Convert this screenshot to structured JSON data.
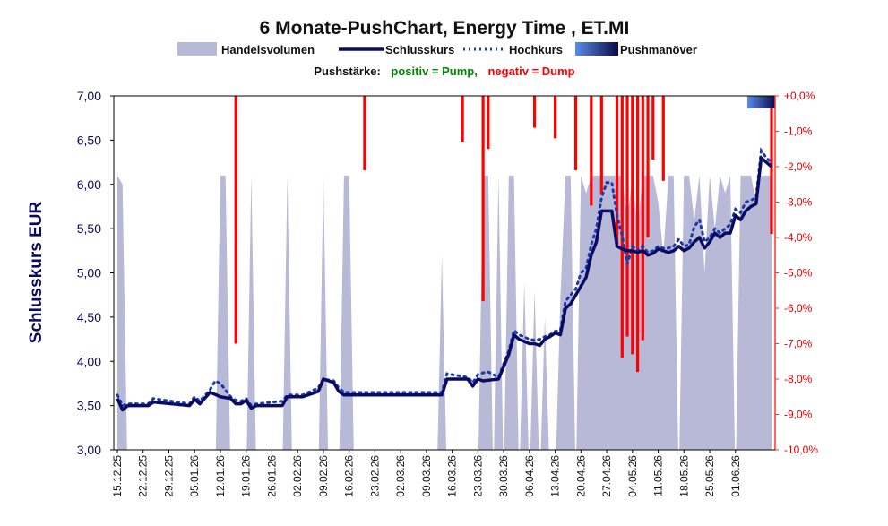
{
  "colors": {
    "volume": "#b7b9d6",
    "close": "#0b0b66",
    "high": "#1a3aa8",
    "dump": "#ff0000",
    "pump": "#008800",
    "push_start": "#5a8ce8",
    "push_end": "#0b0b46"
  },
  "chart_data": {
    "type": "line",
    "title": "6 Monate-PushChart, Energy Time , ET.MI",
    "legend": [
      "Handelsvolumen",
      "Schlusskurs",
      "Hochkurs",
      "Pushmanöver"
    ],
    "push_label": {
      "prefix": "Pushstärke:",
      "positive": "positiv = Pump,",
      "negative": "negativ = Dump"
    },
    "ylabel": "Schlusskurs EUR",
    "ylim": [
      3.0,
      7.0
    ],
    "yticks": [
      "3,00",
      "3,50",
      "4,00",
      "4,50",
      "5,00",
      "5,50",
      "6,00",
      "6,50",
      "7,00"
    ],
    "y2lim": [
      -10.0,
      0.0
    ],
    "y2ticks": [
      "-10,0%",
      "-9,0%",
      "-8,0%",
      "-7,0%",
      "-6,0%",
      "-5,0%",
      "-4,0%",
      "-3,0%",
      "-2,0%",
      "-1,0%",
      "+0,0%"
    ],
    "grid": false,
    "xticks": [
      {
        "i": 0,
        "label": "15.12.25"
      },
      {
        "i": 5,
        "label": "22.12.25"
      },
      {
        "i": 10,
        "label": "29.12.25"
      },
      {
        "i": 15,
        "label": "05.01.26"
      },
      {
        "i": 20,
        "label": "12.01.26"
      },
      {
        "i": 25,
        "label": "19.01.26"
      },
      {
        "i": 30,
        "label": "26.01.26"
      },
      {
        "i": 35,
        "label": "02.02.26"
      },
      {
        "i": 40,
        "label": "09.02.26"
      },
      {
        "i": 45,
        "label": "16.02.26"
      },
      {
        "i": 50,
        "label": "23.02.26"
      },
      {
        "i": 55,
        "label": "02.03.26"
      },
      {
        "i": 60,
        "label": "09.03.26"
      },
      {
        "i": 65,
        "label": "16.03.26"
      },
      {
        "i": 70,
        "label": "23.03.26"
      },
      {
        "i": 75,
        "label": "30.03.26"
      },
      {
        "i": 80,
        "label": "06.04.26"
      },
      {
        "i": 85,
        "label": "13.04.26"
      },
      {
        "i": 90,
        "label": "20.04.26"
      },
      {
        "i": 95,
        "label": "27.04.26"
      },
      {
        "i": 100,
        "label": "04.05.26"
      },
      {
        "i": 105,
        "label": "11.05.26"
      },
      {
        "i": 110,
        "label": "18.05.26"
      },
      {
        "i": 115,
        "label": "25.05.26"
      },
      {
        "i": 120,
        "label": "01.06.26"
      }
    ],
    "x_count": 128,
    "close_anchors": [
      [
        0,
        3.58
      ],
      [
        1,
        3.45
      ],
      [
        2,
        3.5
      ],
      [
        6,
        3.5
      ],
      [
        7,
        3.54
      ],
      [
        14,
        3.5
      ],
      [
        15,
        3.57
      ],
      [
        16,
        3.52
      ],
      [
        18,
        3.65
      ],
      [
        20,
        3.6
      ],
      [
        22,
        3.58
      ],
      [
        23,
        3.52
      ],
      [
        24,
        3.52
      ],
      [
        25,
        3.56
      ],
      [
        26,
        3.47
      ],
      [
        27,
        3.5
      ],
      [
        32,
        3.5
      ],
      [
        33,
        3.6
      ],
      [
        36,
        3.6
      ],
      [
        39,
        3.66
      ],
      [
        40,
        3.8
      ],
      [
        42,
        3.76
      ],
      [
        43,
        3.66
      ],
      [
        44,
        3.62
      ],
      [
        57,
        3.62
      ],
      [
        63,
        3.62
      ],
      [
        64,
        3.8
      ],
      [
        68,
        3.8
      ],
      [
        69,
        3.72
      ],
      [
        70,
        3.8
      ],
      [
        71,
        3.78
      ],
      [
        74,
        3.8
      ],
      [
        76,
        4.08
      ],
      [
        77,
        4.3
      ],
      [
        78,
        4.25
      ],
      [
        80,
        4.2
      ],
      [
        81,
        4.2
      ],
      [
        82,
        4.18
      ],
      [
        83,
        4.25
      ],
      [
        84,
        4.28
      ],
      [
        85,
        4.32
      ],
      [
        86,
        4.3
      ],
      [
        87,
        4.6
      ],
      [
        88,
        4.65
      ],
      [
        90,
        4.85
      ],
      [
        91,
        4.95
      ],
      [
        92,
        5.2
      ],
      [
        93,
        5.35
      ],
      [
        94,
        5.7
      ],
      [
        96,
        5.7
      ],
      [
        97,
        5.3
      ],
      [
        98,
        5.27
      ],
      [
        99,
        5.25
      ],
      [
        100,
        5.25
      ],
      [
        101,
        5.23
      ],
      [
        102,
        5.25
      ],
      [
        103,
        5.2
      ],
      [
        104,
        5.22
      ],
      [
        105,
        5.27
      ],
      [
        106,
        5.25
      ],
      [
        107,
        5.23
      ],
      [
        108,
        5.25
      ],
      [
        109,
        5.3
      ],
      [
        110,
        5.25
      ],
      [
        111,
        5.28
      ],
      [
        112,
        5.35
      ],
      [
        113,
        5.4
      ],
      [
        114,
        5.28
      ],
      [
        115,
        5.35
      ],
      [
        116,
        5.45
      ],
      [
        117,
        5.4
      ],
      [
        118,
        5.45
      ],
      [
        119,
        5.45
      ],
      [
        120,
        5.65
      ],
      [
        121,
        5.6
      ],
      [
        122,
        5.7
      ],
      [
        123,
        5.75
      ],
      [
        124,
        5.78
      ],
      [
        125,
        6.3
      ],
      [
        126,
        6.25
      ],
      [
        127,
        6.2
      ]
    ],
    "high_anchors": [
      [
        0,
        3.62
      ],
      [
        1,
        3.5
      ],
      [
        2,
        3.52
      ],
      [
        6,
        3.52
      ],
      [
        7,
        3.58
      ],
      [
        14,
        3.52
      ],
      [
        15,
        3.6
      ],
      [
        16,
        3.55
      ],
      [
        18,
        3.68
      ],
      [
        19,
        3.78
      ],
      [
        20,
        3.75
      ],
      [
        22,
        3.6
      ],
      [
        23,
        3.56
      ],
      [
        24,
        3.55
      ],
      [
        25,
        3.58
      ],
      [
        26,
        3.5
      ],
      [
        27,
        3.52
      ],
      [
        32,
        3.55
      ],
      [
        33,
        3.62
      ],
      [
        36,
        3.62
      ],
      [
        39,
        3.7
      ],
      [
        40,
        3.8
      ],
      [
        42,
        3.78
      ],
      [
        43,
        3.7
      ],
      [
        44,
        3.65
      ],
      [
        57,
        3.65
      ],
      [
        63,
        3.65
      ],
      [
        64,
        3.86
      ],
      [
        68,
        3.82
      ],
      [
        69,
        3.76
      ],
      [
        70,
        3.85
      ],
      [
        71,
        3.87
      ],
      [
        72,
        3.88
      ],
      [
        74,
        3.82
      ],
      [
        76,
        4.12
      ],
      [
        77,
        4.35
      ],
      [
        78,
        4.3
      ],
      [
        80,
        4.25
      ],
      [
        81,
        4.24
      ],
      [
        82,
        4.25
      ],
      [
        83,
        4.28
      ],
      [
        84,
        4.3
      ],
      [
        85,
        4.34
      ],
      [
        86,
        4.35
      ],
      [
        87,
        4.68
      ],
      [
        88,
        4.75
      ],
      [
        89,
        4.82
      ],
      [
        90,
        5.0
      ],
      [
        91,
        5.05
      ],
      [
        92,
        5.32
      ],
      [
        93,
        5.5
      ],
      [
        94,
        5.85
      ],
      [
        95,
        6.02
      ],
      [
        96,
        6.02
      ],
      [
        97,
        5.65
      ],
      [
        98,
        5.42
      ],
      [
        99,
        5.1
      ],
      [
        100,
        5.3
      ],
      [
        101,
        5.25
      ],
      [
        102,
        5.3
      ],
      [
        103,
        5.23
      ],
      [
        104,
        5.25
      ],
      [
        105,
        5.3
      ],
      [
        106,
        5.28
      ],
      [
        107,
        5.28
      ],
      [
        108,
        5.3
      ],
      [
        109,
        5.38
      ],
      [
        110,
        5.3
      ],
      [
        111,
        5.32
      ],
      [
        112,
        5.52
      ],
      [
        113,
        5.6
      ],
      [
        114,
        5.35
      ],
      [
        115,
        5.4
      ],
      [
        116,
        5.5
      ],
      [
        117,
        5.45
      ],
      [
        118,
        5.5
      ],
      [
        119,
        5.55
      ],
      [
        120,
        5.72
      ],
      [
        121,
        5.68
      ],
      [
        122,
        5.8
      ],
      [
        123,
        5.82
      ],
      [
        124,
        5.85
      ],
      [
        125,
        6.38
      ],
      [
        126,
        6.3
      ],
      [
        127,
        6.25
      ]
    ],
    "volume_spikes": [
      [
        0,
        6.1
      ],
      [
        1,
        6.0
      ],
      [
        20,
        6.1
      ],
      [
        21,
        6.1
      ],
      [
        26,
        6.1
      ],
      [
        33,
        6.1
      ],
      [
        40,
        6.1
      ],
      [
        44,
        6.1
      ],
      [
        45,
        6.1
      ],
      [
        63,
        5.2
      ],
      [
        71,
        6.1
      ],
      [
        72,
        6.1
      ],
      [
        74,
        6.1
      ],
      [
        76,
        6.1
      ],
      [
        77,
        6.1
      ],
      [
        79,
        4.9
      ],
      [
        81,
        4.8
      ],
      [
        83,
        4.5
      ],
      [
        86,
        4.7
      ],
      [
        87,
        6.1
      ],
      [
        88,
        6.1
      ],
      [
        90,
        6.1
      ],
      [
        91,
        5.9
      ],
      [
        92,
        6.1
      ],
      [
        93,
        6.1
      ],
      [
        94,
        6.1
      ],
      [
        95,
        6.1
      ],
      [
        96,
        6.1
      ],
      [
        97,
        6.1
      ],
      [
        98,
        6.1
      ],
      [
        99,
        5.6
      ],
      [
        100,
        6.1
      ],
      [
        101,
        5.5
      ],
      [
        102,
        6.1
      ],
      [
        103,
        6.1
      ],
      [
        104,
        6.1
      ],
      [
        105,
        5.8
      ],
      [
        106,
        5.2
      ],
      [
        107,
        6.1
      ],
      [
        108,
        6.1
      ],
      [
        110,
        6.1
      ],
      [
        111,
        6.1
      ],
      [
        112,
        5.6
      ],
      [
        113,
        6.1
      ],
      [
        114,
        5.0
      ],
      [
        115,
        6.1
      ],
      [
        116,
        5.5
      ],
      [
        117,
        6.1
      ],
      [
        118,
        5.9
      ],
      [
        119,
        6.1
      ],
      [
        121,
        6.1
      ],
      [
        122,
        6.1
      ],
      [
        123,
        6.1
      ],
      [
        124,
        5.8
      ],
      [
        125,
        6.1
      ],
      [
        126,
        6.1
      ],
      [
        127,
        6.1
      ]
    ],
    "volume_high": [
      91,
      92,
      93,
      94,
      95,
      96,
      97,
      98,
      99,
      100,
      101,
      102,
      103,
      104
    ],
    "dumps": [
      [
        23,
        -7.0
      ],
      [
        48,
        -2.1
      ],
      [
        67,
        -1.3
      ],
      [
        71,
        -5.8
      ],
      [
        72,
        -1.5
      ],
      [
        81,
        -0.9
      ],
      [
        85,
        -1.2
      ],
      [
        89,
        -2.1
      ],
      [
        92,
        -3.1
      ],
      [
        94,
        -2.8
      ],
      [
        97,
        -4.2
      ],
      [
        98,
        -7.4
      ],
      [
        99,
        -6.8
      ],
      [
        100,
        -7.3
      ],
      [
        101,
        -7.8
      ],
      [
        102,
        -6.9
      ],
      [
        103,
        -4.0
      ],
      [
        104,
        -1.8
      ],
      [
        106,
        -2.4
      ],
      [
        127,
        -3.9
      ]
    ],
    "push_band": {
      "x_from": 123,
      "x_to": 128
    }
  }
}
